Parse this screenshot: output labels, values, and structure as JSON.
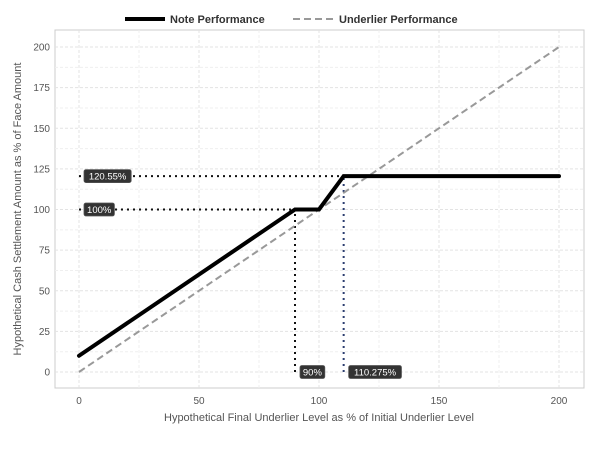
{
  "chart_data": {
    "type": "line",
    "xlabel": "Hypothetical Final Underlier Level as % of Initial Underlier Level",
    "ylabel": "Hypothetical Cash Settlement Amount as % of Face Amount",
    "xlim": [
      0,
      200
    ],
    "ylim": [
      0,
      200
    ],
    "x_ticks": [
      0,
      50,
      100,
      150,
      200
    ],
    "y_ticks": [
      0,
      25,
      50,
      75,
      100,
      125,
      150,
      175,
      200
    ],
    "x_tick_labels": [
      "0",
      "50",
      "100",
      "150",
      "200"
    ],
    "y_tick_labels": [
      "0",
      "25",
      "50",
      "75",
      "100",
      "125",
      "150",
      "175",
      "200"
    ],
    "grid": true,
    "legend_position": "top",
    "series": [
      {
        "name": "Note Performance",
        "style": "solid",
        "color": "#000000",
        "points": [
          [
            0,
            10
          ],
          [
            90,
            100
          ],
          [
            100,
            100
          ],
          [
            110.275,
            120.55
          ],
          [
            200,
            120.55
          ]
        ]
      },
      {
        "name": "Underlier Performance",
        "style": "dashed",
        "color": "#999999",
        "points": [
          [
            0,
            0
          ],
          [
            200,
            200
          ]
        ]
      }
    ],
    "annotations": [
      {
        "label": "120.55%",
        "axis": "y",
        "value": 120.55,
        "to_x": 110.275
      },
      {
        "label": "100%",
        "axis": "y",
        "value": 100,
        "to_x": 90
      },
      {
        "label": "90%",
        "axis": "x",
        "value": 90,
        "to_y": 100
      },
      {
        "label": "110.275%",
        "axis": "x",
        "value": 110.275,
        "to_y": 120.55
      }
    ]
  }
}
